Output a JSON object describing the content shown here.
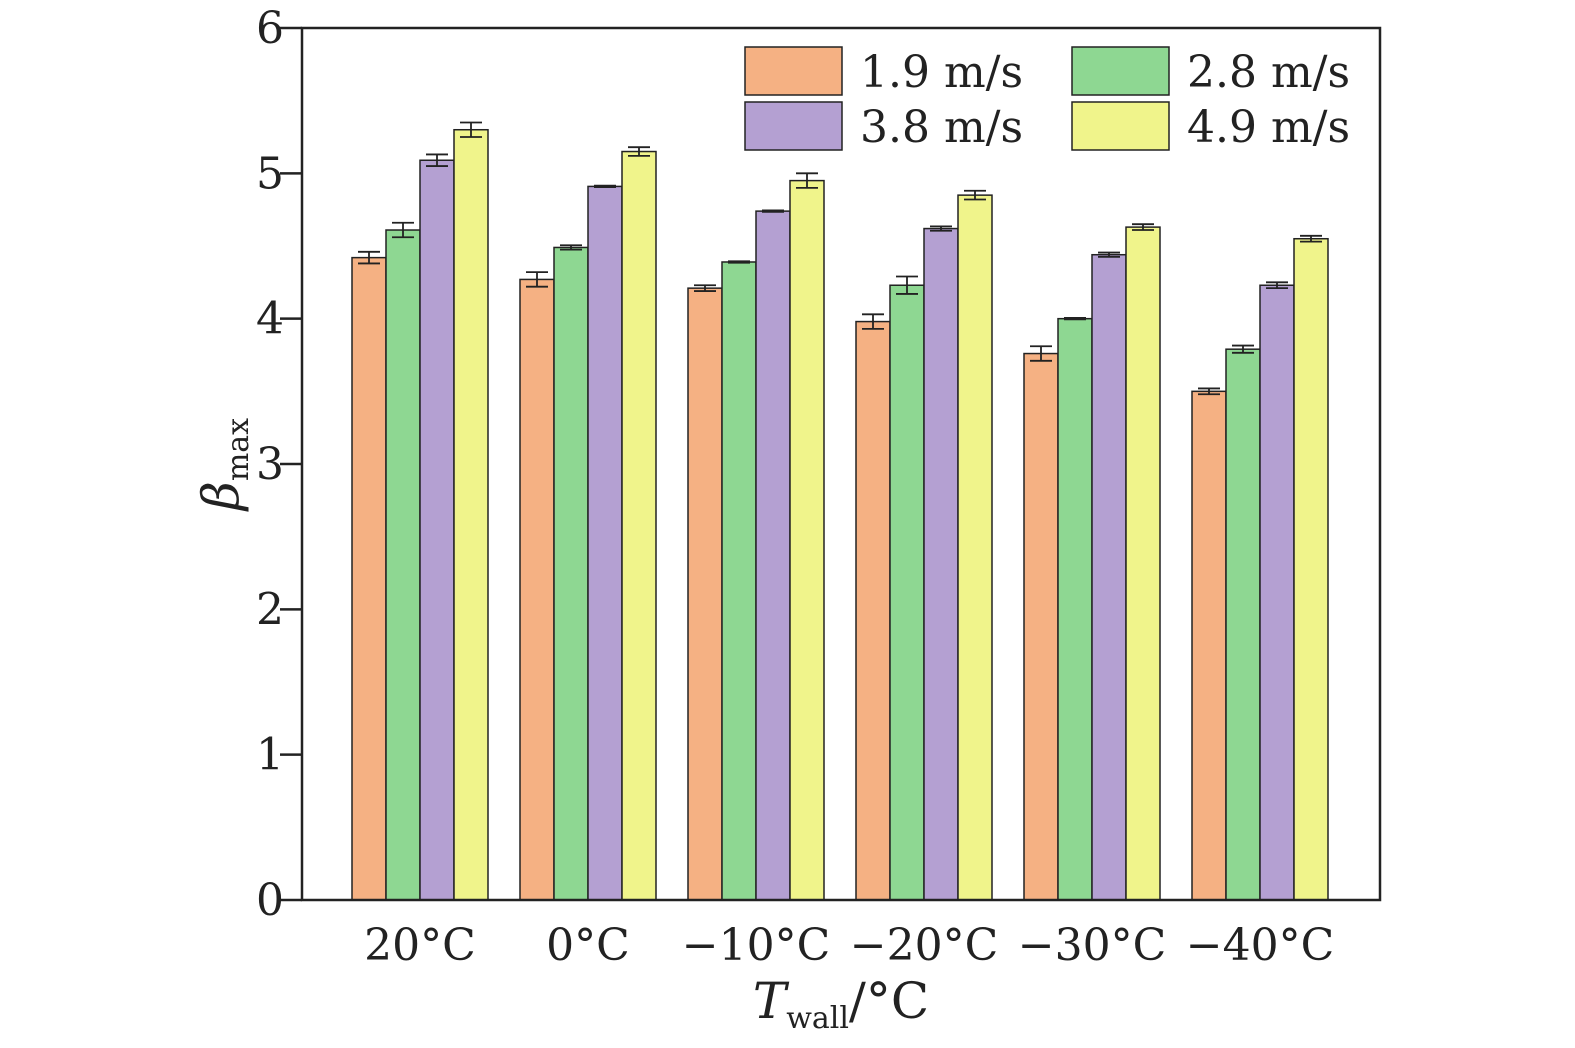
{
  "chart_data": {
    "type": "bar",
    "title": "",
    "xlabel": {
      "main": "T",
      "sub": "wall",
      "suffix": "/°C"
    },
    "ylabel": {
      "main": "β",
      "sub": "max"
    },
    "categories": [
      "20°C",
      "0°C",
      "−10°C",
      "−20°C",
      "−30°C",
      "−40°C"
    ],
    "ylim": [
      0,
      6
    ],
    "yticks": [
      "0",
      "1",
      "2",
      "3",
      "4",
      "5",
      "6"
    ],
    "grid": false,
    "legend_position": "top-right",
    "error_bars": true,
    "series": [
      {
        "name": "1.9 m/s",
        "color": "#F5B183",
        "values": [
          4.42,
          4.27,
          4.21,
          3.98,
          3.76,
          3.5
        ],
        "errors": [
          0.04,
          0.05,
          0.02,
          0.05,
          0.05,
          0.02
        ]
      },
      {
        "name": "2.8 m/s",
        "color": "#8ED792",
        "values": [
          4.61,
          4.49,
          4.39,
          4.23,
          4.0,
          3.79
        ],
        "errors": [
          0.05,
          0.015,
          0.005,
          0.06,
          0.005,
          0.025
        ]
      },
      {
        "name": "3.8 m/s",
        "color": "#B4A0D2",
        "values": [
          5.09,
          4.91,
          4.74,
          4.62,
          4.44,
          4.23
        ],
        "errors": [
          0.04,
          0.005,
          0.005,
          0.015,
          0.015,
          0.02
        ]
      },
      {
        "name": "4.9 m/s",
        "color": "#F0F48B",
        "values": [
          5.3,
          5.15,
          4.95,
          4.85,
          4.63,
          4.55
        ],
        "errors": [
          0.05,
          0.03,
          0.05,
          0.03,
          0.02,
          0.02
        ]
      }
    ]
  }
}
